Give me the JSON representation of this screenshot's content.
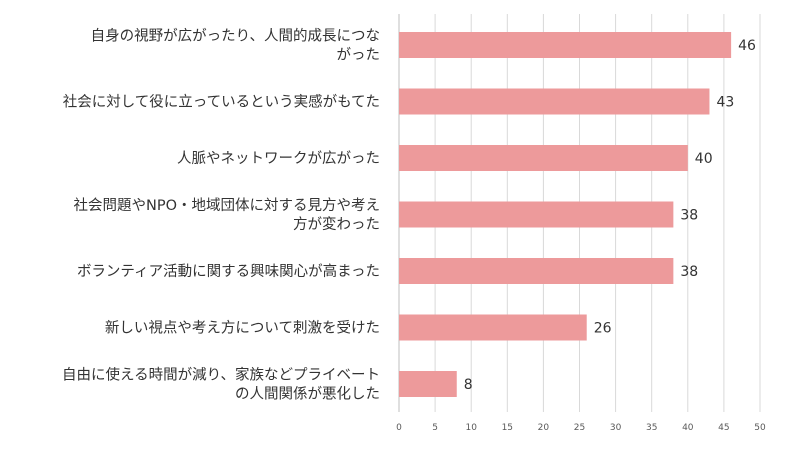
{
  "chart_data": {
    "type": "bar",
    "orientation": "horizontal",
    "categories": [
      [
        "自身の視野が広がったり、人間的成長につな",
        "がった"
      ],
      [
        "社会に対して役に立っているという実感がもてた"
      ],
      [
        "人脈やネットワークが広がった"
      ],
      [
        "社会問題やNPO・地域団体に対する見方や考え",
        "方が変わった"
      ],
      [
        "ボランティア活動に関する興味関心が高まった"
      ],
      [
        "新しい視点や考え方について刺激を受けた"
      ],
      [
        "自由に使える時間が減り、家族などプライベート",
        "の人間関係が悪化した"
      ]
    ],
    "values": [
      46,
      43,
      40,
      38,
      38,
      26,
      8
    ],
    "value_labels": [
      "46",
      "43",
      "40",
      "38",
      "38",
      "26",
      "8"
    ],
    "xlim": [
      0,
      50
    ],
    "xticks": [
      "0",
      "5",
      "10",
      "15",
      "20",
      "25",
      "30",
      "35",
      "40",
      "45",
      "50"
    ],
    "grid": true,
    "legend": "none",
    "colors": {
      "bar": "#ed9a9b",
      "grid": "#d9d9d9",
      "text": "#333333",
      "tick": "#595959"
    }
  }
}
